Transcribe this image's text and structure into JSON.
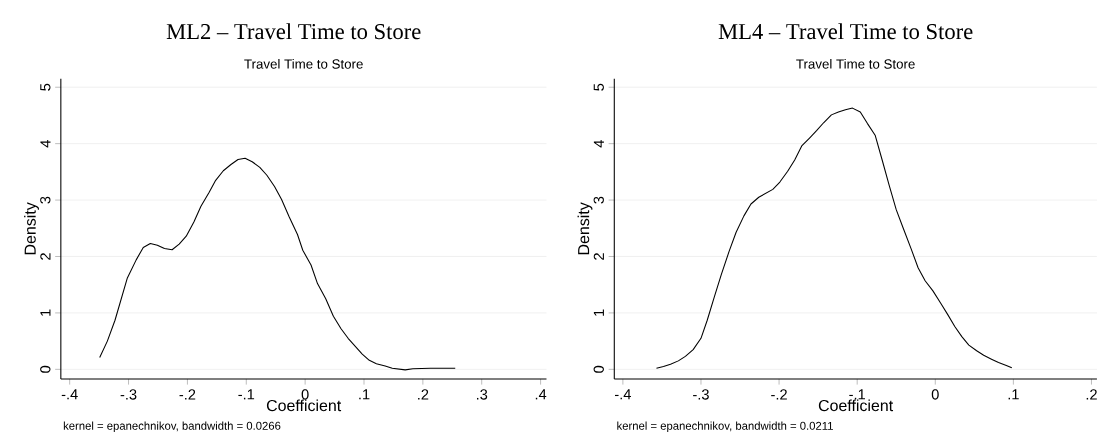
{
  "chart_data": [
    {
      "type": "line",
      "title": "ML2 – Travel Time to Store",
      "subtitle": "Travel Time to Store",
      "xlabel": "Coefficient",
      "ylabel": "Density",
      "annotations": [
        "kernel = epanechnikov, bandwidth = 0.0266"
      ],
      "x": [
        -0.349,
        -0.336,
        -0.323,
        -0.302,
        -0.287,
        -0.275,
        -0.263,
        -0.251,
        -0.239,
        -0.226,
        -0.214,
        -0.202,
        -0.189,
        -0.177,
        -0.163,
        -0.152,
        -0.139,
        -0.126,
        -0.114,
        -0.102,
        -0.09,
        -0.077,
        -0.065,
        -0.052,
        -0.04,
        -0.027,
        -0.013,
        -0.004,
        0.01,
        0.021,
        0.035,
        0.048,
        0.061,
        0.073,
        0.085,
        0.097,
        0.109,
        0.121,
        0.136,
        0.148,
        0.17,
        0.183,
        0.213,
        0.231,
        0.255
      ],
      "series": [
        {
          "color": "#000000",
          "values": [
            0.21,
            0.5,
            0.87,
            1.62,
            1.94,
            2.16,
            2.23,
            2.2,
            2.14,
            2.12,
            2.22,
            2.36,
            2.61,
            2.89,
            3.14,
            3.35,
            3.52,
            3.63,
            3.72,
            3.74,
            3.68,
            3.58,
            3.44,
            3.24,
            3.01,
            2.7,
            2.39,
            2.11,
            1.85,
            1.52,
            1.25,
            0.94,
            0.72,
            0.55,
            0.41,
            0.27,
            0.16,
            0.1,
            0.06,
            0.02,
            -0.01,
            0.01,
            0.02,
            0.02,
            0.02
          ]
        }
      ],
      "xlim": [
        -0.415,
        0.41
      ],
      "ylim": [
        -0.17,
        5.15
      ],
      "xticks": [
        {
          "value": -0.4,
          "label": "-.4"
        },
        {
          "value": -0.3,
          "label": "-.3"
        },
        {
          "value": -0.2,
          "label": "-.2"
        },
        {
          "value": -0.1,
          "label": "-.1"
        },
        0,
        {
          "value": 0.1,
          "label": ".1"
        },
        {
          "value": 0.2,
          "label": ".2"
        },
        {
          "value": 0.3,
          "label": ".3"
        },
        {
          "value": 0.4,
          "label": ".4"
        }
      ],
      "yticks": [
        0,
        1,
        2,
        3,
        4,
        5
      ],
      "grid": "y"
    },
    {
      "type": "line",
      "title": "ML4 – Travel Time to Store",
      "subtitle": "Travel Time to Store",
      "xlabel": "Coefficient",
      "ylabel": "Density",
      "annotations": [
        "kernel = epanechnikov, bandwidth = 0.0211"
      ],
      "x": [
        -0.357,
        -0.348,
        -0.339,
        -0.329,
        -0.32,
        -0.31,
        -0.3,
        -0.292,
        -0.283,
        -0.274,
        -0.264,
        -0.255,
        -0.245,
        -0.236,
        -0.226,
        -0.217,
        -0.208,
        -0.199,
        -0.189,
        -0.18,
        -0.171,
        -0.161,
        -0.152,
        -0.143,
        -0.133,
        -0.124,
        -0.115,
        -0.106,
        -0.096,
        -0.087,
        -0.077,
        -0.068,
        -0.059,
        -0.05,
        -0.041,
        -0.031,
        -0.022,
        -0.013,
        -0.003,
        0.007,
        0.016,
        0.025,
        0.034,
        0.043,
        0.053,
        0.062,
        0.072,
        0.081,
        0.091,
        0.098
      ],
      "series": [
        {
          "color": "#000000",
          "values": [
            0.02,
            0.05,
            0.09,
            0.15,
            0.23,
            0.35,
            0.55,
            0.87,
            1.28,
            1.68,
            2.09,
            2.43,
            2.72,
            2.93,
            3.05,
            3.12,
            3.19,
            3.32,
            3.51,
            3.71,
            3.96,
            4.1,
            4.23,
            4.37,
            4.51,
            4.56,
            4.6,
            4.63,
            4.56,
            4.36,
            4.15,
            3.71,
            3.26,
            2.83,
            2.5,
            2.14,
            1.8,
            1.57,
            1.39,
            1.17,
            0.97,
            0.76,
            0.58,
            0.43,
            0.33,
            0.25,
            0.18,
            0.12,
            0.07,
            0.03
          ]
        }
      ],
      "xlim": [
        -0.411,
        0.207
      ],
      "ylim": [
        -0.17,
        5.15
      ],
      "xticks": [
        {
          "value": -0.4,
          "label": "-.4"
        },
        {
          "value": -0.3,
          "label": "-.3"
        },
        {
          "value": -0.2,
          "label": "-.2"
        },
        {
          "value": -0.1,
          "label": "-.1"
        },
        0,
        {
          "value": 0.1,
          "label": ".1"
        },
        {
          "value": 0.2,
          "label": ".2"
        }
      ],
      "yticks": [
        0,
        1,
        2,
        3,
        4,
        5
      ],
      "grid": "y"
    }
  ]
}
